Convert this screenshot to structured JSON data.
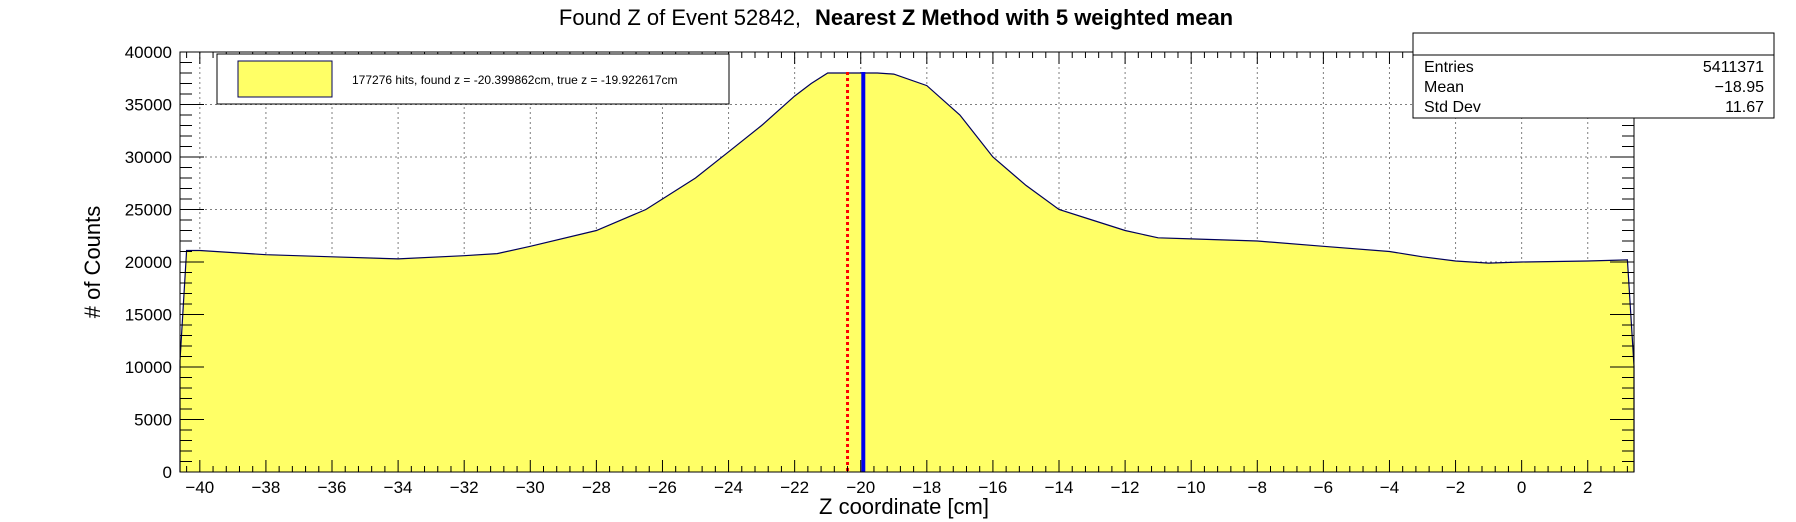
{
  "title": {
    "normal": "Found Z of Event 52842,",
    "bold": "Nearest Z Method with 5 weighted mean"
  },
  "legend": {
    "text": "177276 hits, found z = -20.399862cm, true z = -19.922617cm",
    "swatch_color": "#ffff66"
  },
  "stats": {
    "rows": [
      {
        "label": "Entries",
        "value": "5411371"
      },
      {
        "label": "Mean",
        "value": "−18.95"
      },
      {
        "label": "Std Dev",
        "value": "11.67"
      }
    ]
  },
  "chart_data": {
    "type": "area",
    "xlabel": "Z coordinate [cm]",
    "ylabel": "# of Counts",
    "xlim": [
      -40.6,
      3.4
    ],
    "ylim": [
      0,
      40000
    ],
    "x_ticks": [
      -40,
      -38,
      -36,
      -34,
      -32,
      -30,
      -28,
      -26,
      -24,
      -22,
      -20,
      -18,
      -16,
      -14,
      -12,
      -10,
      -8,
      -6,
      -4,
      -2,
      0,
      2
    ],
    "y_ticks": [
      0,
      5000,
      10000,
      15000,
      20000,
      25000,
      30000,
      35000,
      40000
    ],
    "grid": true,
    "fill_color": "#ffff66",
    "line_color": "#00005a",
    "histogram": {
      "x": [
        -40.6,
        -40.4,
        -40,
        -38,
        -36,
        -34,
        -32,
        -31,
        -30,
        -28,
        -26.5,
        -25,
        -24,
        -23,
        -22,
        -21.5,
        -21,
        -20.5,
        -20,
        -19.5,
        -19,
        -18,
        -17,
        -16,
        -15,
        -14,
        -13,
        -12,
        -11,
        -10,
        -8,
        -6,
        -4,
        -3,
        -2,
        -1,
        0,
        2,
        3.2,
        3.4
      ],
      "y": [
        10600,
        21100,
        21100,
        20700,
        20500,
        20300,
        20600,
        20800,
        21500,
        23000,
        25000,
        28000,
        30500,
        33000,
        35800,
        37000,
        38000,
        38000,
        38000,
        38000,
        37900,
        36800,
        34000,
        30000,
        27300,
        25000,
        24000,
        23000,
        22300,
        22200,
        22000,
        21500,
        21000,
        20500,
        20100,
        19900,
        20000,
        20100,
        20200,
        10100
      ]
    },
    "lines": [
      {
        "name": "found z",
        "x": -20.399862,
        "color": "#ff0000",
        "style": "dotted"
      },
      {
        "name": "true z",
        "x": -19.922617,
        "color": "#0000ee",
        "style": "solid"
      }
    ]
  }
}
